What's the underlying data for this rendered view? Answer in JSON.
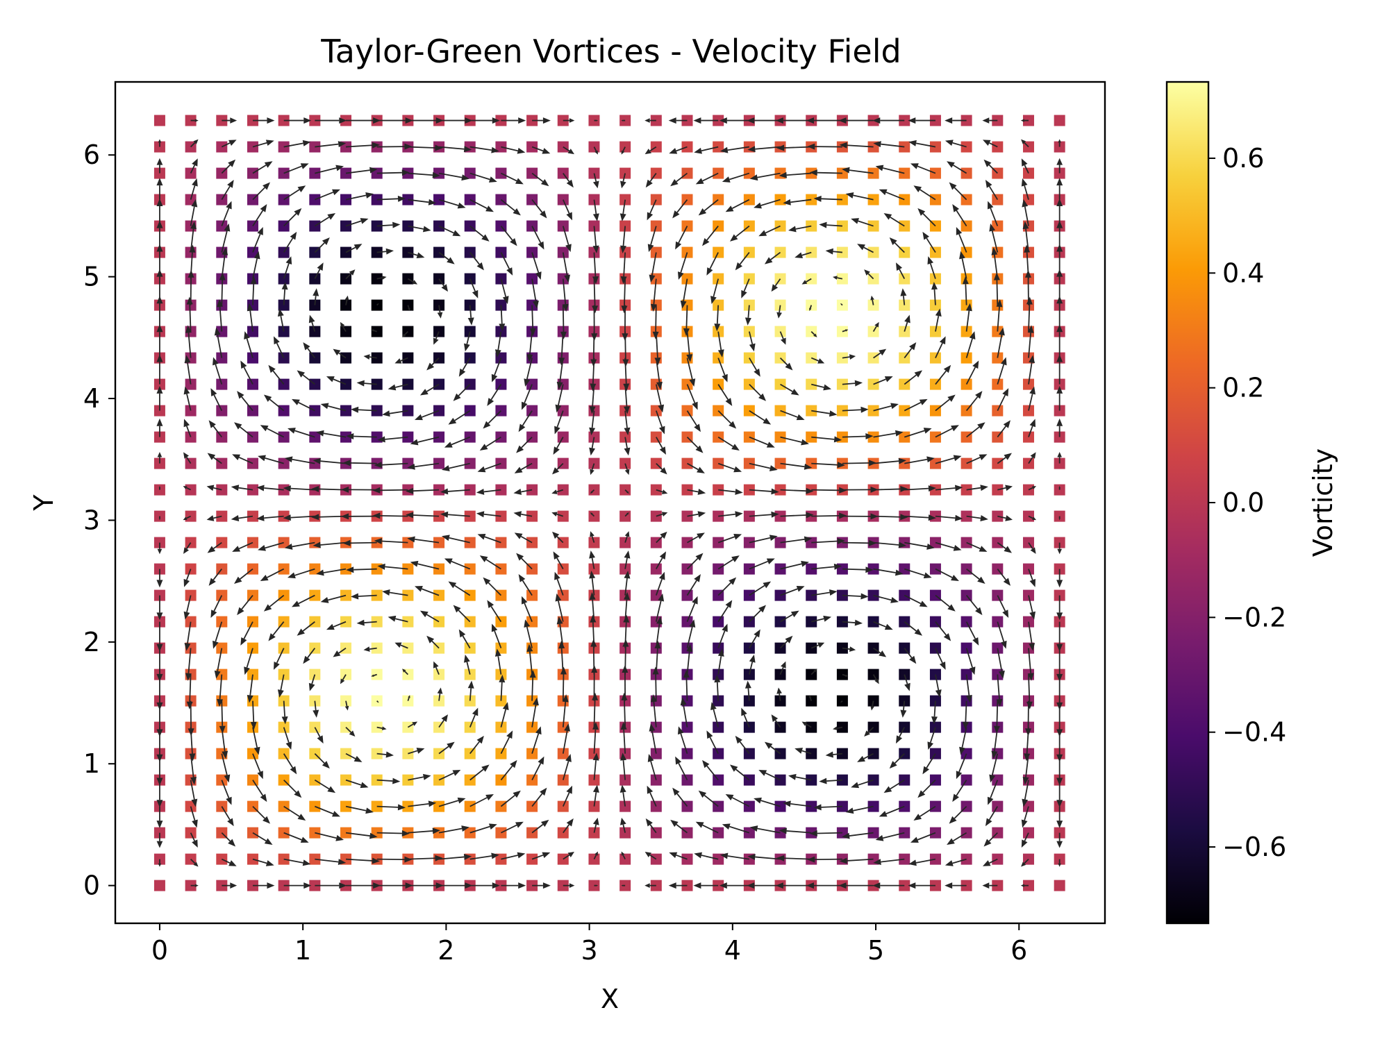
{
  "chart_data": {
    "type": "quiver",
    "title": "Taylor-Green Vortices - Velocity Field",
    "xlabel": "X",
    "ylabel": "Y",
    "xlim": [
      -0.31,
      6.6
    ],
    "ylim": [
      -0.31,
      6.6
    ],
    "xticks": [
      0,
      1,
      2,
      3,
      4,
      5,
      6
    ],
    "yticks": [
      0,
      1,
      2,
      3,
      4,
      5,
      6
    ],
    "grid": false,
    "grid_n": 30,
    "x_range": [
      0,
      6.283185
    ],
    "y_range": [
      0,
      6.283185
    ],
    "field": {
      "u": "sin(x)*cos(y)",
      "v": "-cos(x)*sin(y)",
      "vorticity": "0.733*sin(x)*sin(y)"
    },
    "marker": "square",
    "arrow_color": "#262626",
    "colormap": "inferno",
    "colormap_stops": [
      "#000004",
      "#1b0c41",
      "#4a0c6b",
      "#781c6d",
      "#a52c60",
      "#cf4446",
      "#ed6925",
      "#fb9b06",
      "#f7d13d",
      "#fcffa4"
    ],
    "colorbar": {
      "label": "Vorticity",
      "range": [
        -0.733,
        0.733
      ],
      "ticks": [
        -0.6,
        -0.4,
        -0.2,
        0.0,
        0.2,
        0.4,
        0.6
      ],
      "tick_labels": [
        "−0.6",
        "−0.4",
        "−0.2",
        "0.0",
        "0.2",
        "0.4",
        "0.6"
      ]
    }
  }
}
